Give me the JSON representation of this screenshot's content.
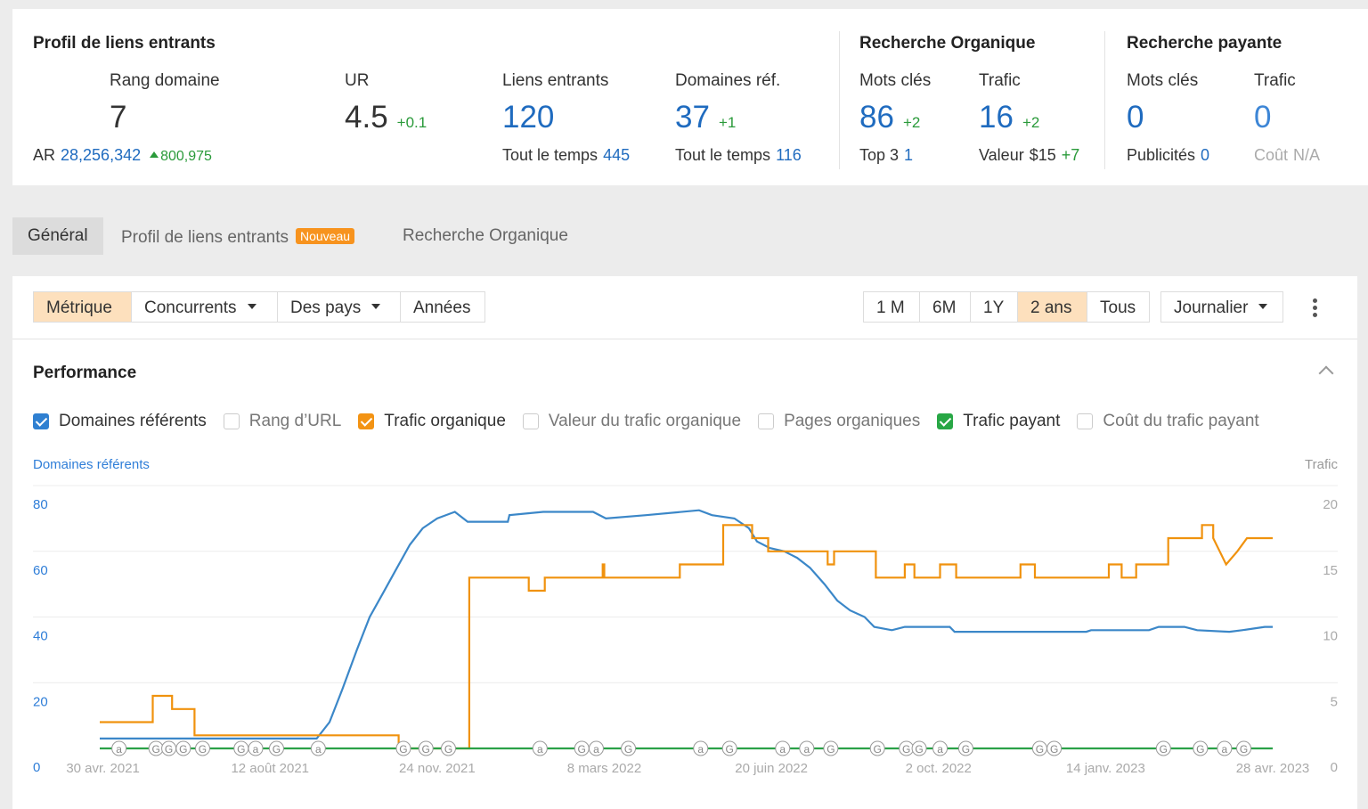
{
  "backlinks": {
    "title": "Profil de liens entrants",
    "domain_rating": {
      "label": "Rang domaine",
      "value": 7,
      "ar_label": "AR",
      "ar": "28,256,342",
      "ar_change": "800,975"
    },
    "url_rating": {
      "label": "UR",
      "value": 4.5,
      "change": "+0.1"
    },
    "backlinks": {
      "label": "Liens entrants",
      "value": 120,
      "sub_label": "Tout le temps",
      "sub": 445
    },
    "ref_domains": {
      "label": "Domaines réf.",
      "value": 37,
      "change": "+1",
      "sub_label": "Tout le temps",
      "sub": 116
    }
  },
  "organic": {
    "title": "Recherche Organique",
    "keywords": {
      "label": "Mots clés",
      "value": 86,
      "change": "+2",
      "sub_label": "Top 3",
      "sub": 1
    },
    "traffic": {
      "label": "Trafic",
      "value": 16,
      "change": "+2",
      "sub_label": "Valeur",
      "sub": "$15",
      "sub_change": "+7"
    }
  },
  "paid": {
    "title": "Recherche payante",
    "keywords": {
      "label": "Mots clés",
      "value": 0,
      "sub_label": "Publicités",
      "sub": 0
    },
    "traffic": {
      "label": "Trafic",
      "value": 0,
      "sub_label": "Coût",
      "sub": "N/A"
    }
  },
  "tabs": [
    "Général",
    "Profil de liens entrants",
    "Recherche Organique"
  ],
  "badge": "Nouveau",
  "filters": [
    "Métrique",
    "Concurrents",
    "Des pays",
    "Années"
  ],
  "ranges": [
    "1 M",
    "6M",
    "1Y",
    "2 ans",
    "Tous"
  ],
  "interval": "Journalier",
  "performance": {
    "title": "Performance",
    "checkboxes": [
      {
        "label": "Domaines référents",
        "checked": true,
        "color": "#2f80d1"
      },
      {
        "label": "Rang d’URL",
        "checked": false
      },
      {
        "label": "Trafic organique",
        "checked": true,
        "color": "#f39313"
      },
      {
        "label": "Valeur du trafic organique",
        "checked": false
      },
      {
        "label": "Pages organiques",
        "checked": false
      },
      {
        "label": "Trafic payant",
        "checked": true,
        "color": "#28a745"
      },
      {
        "label": "Coût du trafic payant",
        "checked": false
      }
    ]
  },
  "chart_data": {
    "type": "line",
    "y_label": "Domaines référents",
    "y2_label": "Trafic",
    "xlim": [
      "2021-04-28",
      "2023-04-28"
    ],
    "xticks": [
      {
        "value": "2021-04-30",
        "label": "30 avr. 2021"
      },
      {
        "value": "2021-08-12",
        "label": "12 août 2021"
      },
      {
        "value": "2021-11-24",
        "label": "24 nov. 2021"
      },
      {
        "value": "2022-03-08",
        "label": "8 mars 2022"
      },
      {
        "value": "2022-06-20",
        "label": "20 juin 2022"
      },
      {
        "value": "2022-10-02",
        "label": "2 oct. 2022"
      },
      {
        "value": "2023-01-14",
        "label": "14 janv. 2023"
      },
      {
        "value": "2023-04-28",
        "label": "28 avr. 2023"
      }
    ],
    "ylim": [
      0,
      80
    ],
    "yticks": [
      0,
      20,
      40,
      60,
      80
    ],
    "y2lim": [
      0,
      20
    ],
    "y2ticks": [
      0,
      5,
      10,
      15,
      20
    ],
    "grid": true,
    "series": [
      {
        "name": "Domaines référents",
        "color": "#3b87c8",
        "axis": "y",
        "x": [
          "2021-04-28",
          "2021-09-10",
          "2021-09-18",
          "2021-09-26",
          "2021-10-05",
          "2021-10-13",
          "2021-10-21",
          "2021-10-30",
          "2021-11-07",
          "2021-11-15",
          "2021-11-24",
          "2021-12-05",
          "2021-12-13",
          "2022-01-07",
          "2022-01-08",
          "2022-01-29",
          "2022-03-01",
          "2022-03-09",
          "2022-04-03",
          "2022-05-06",
          "2022-05-14",
          "2022-05-28",
          "2022-06-06",
          "2022-06-11",
          "2022-06-19",
          "2022-06-28",
          "2022-07-06",
          "2022-07-14",
          "2022-07-23",
          "2022-07-31",
          "2022-08-08",
          "2022-08-17",
          "2022-08-23",
          "2022-09-03",
          "2022-09-11",
          "2022-10-09",
          "2022-10-12",
          "2023-01-02",
          "2023-01-05",
          "2023-02-10",
          "2023-02-16",
          "2023-03-04",
          "2023-03-12",
          "2023-04-01",
          "2023-04-09",
          "2023-04-23",
          "2023-04-28"
        ],
        "values": [
          3,
          3,
          8,
          18,
          30,
          40,
          47,
          55,
          62,
          67,
          70,
          72,
          69,
          69,
          71,
          72,
          72,
          70,
          71,
          72.5,
          71,
          70,
          67,
          63,
          61,
          60,
          58,
          55,
          50,
          45,
          42,
          40,
          37,
          36,
          37,
          37,
          35.5,
          35.5,
          36,
          36,
          37,
          37,
          36,
          35.5,
          36,
          37,
          37
        ]
      },
      {
        "name": "Trafic organique",
        "color": "#f0920e",
        "axis": "y2",
        "x": [
          "2021-04-28",
          "2021-05-31",
          "2021-05-31",
          "2021-06-12",
          "2021-06-12",
          "2021-06-26",
          "2021-06-26",
          "2021-10-31",
          "2021-10-31",
          "2021-12-14",
          "2021-12-14",
          "2022-01-20",
          "2022-01-20",
          "2022-01-30",
          "2022-01-30",
          "2022-03-07",
          "2022-03-07",
          "2022-03-08",
          "2022-03-08",
          "2022-04-24",
          "2022-04-24",
          "2022-05-21",
          "2022-05-21",
          "2022-06-08",
          "2022-06-08",
          "2022-06-18",
          "2022-06-18",
          "2022-07-25",
          "2022-07-25",
          "2022-07-29",
          "2022-07-29",
          "2022-08-24",
          "2022-08-24",
          "2022-09-11",
          "2022-09-11",
          "2022-09-17",
          "2022-09-17",
          "2022-10-03",
          "2022-10-03",
          "2022-10-13",
          "2022-10-13",
          "2022-11-22",
          "2022-11-22",
          "2022-12-01",
          "2022-12-01",
          "2023-01-16",
          "2023-01-16",
          "2023-01-24",
          "2023-01-24",
          "2023-02-02",
          "2023-02-02",
          "2023-02-22",
          "2023-02-22",
          "2023-03-15",
          "2023-03-15",
          "2023-03-22",
          "2023-03-22",
          "2023-03-26",
          "2023-03-30",
          "2023-04-06",
          "2023-04-12",
          "2023-04-28"
        ],
        "values": [
          2,
          2,
          4,
          4,
          3,
          3,
          1,
          1,
          0,
          0,
          13,
          13,
          12,
          12,
          13,
          13,
          14,
          14,
          13,
          13,
          14,
          14,
          17,
          17,
          16,
          16,
          15,
          15,
          14,
          14,
          15,
          15,
          13,
          13,
          14,
          14,
          13,
          13,
          14,
          14,
          13,
          13,
          14,
          14,
          13,
          13,
          14,
          14,
          13,
          13,
          14,
          14,
          16,
          16,
          17,
          17,
          16,
          15,
          14,
          15,
          16,
          16
        ]
      },
      {
        "name": "Trafic payant",
        "color": "#2aa147",
        "axis": "y2",
        "x": [
          "2021-04-28",
          "2023-04-28"
        ],
        "values": [
          0,
          0
        ]
      }
    ],
    "annotations": [
      {
        "x": "2021-05-10",
        "label": "a"
      },
      {
        "x": "2021-06-02",
        "label": "G"
      },
      {
        "x": "2021-06-10",
        "label": "G"
      },
      {
        "x": "2021-06-19",
        "label": "G"
      },
      {
        "x": "2021-07-01",
        "label": "G"
      },
      {
        "x": "2021-07-25",
        "label": "G"
      },
      {
        "x": "2021-08-03",
        "label": "a"
      },
      {
        "x": "2021-08-16",
        "label": "G"
      },
      {
        "x": "2021-09-11",
        "label": "a"
      },
      {
        "x": "2021-11-03",
        "label": "G"
      },
      {
        "x": "2021-11-17",
        "label": "G"
      },
      {
        "x": "2021-12-01",
        "label": "G"
      },
      {
        "x": "2022-01-27",
        "label": "a"
      },
      {
        "x": "2022-02-22",
        "label": "G"
      },
      {
        "x": "2022-03-03",
        "label": "a"
      },
      {
        "x": "2022-03-23",
        "label": "G"
      },
      {
        "x": "2022-05-07",
        "label": "a"
      },
      {
        "x": "2022-05-25",
        "label": "G"
      },
      {
        "x": "2022-06-27",
        "label": "a"
      },
      {
        "x": "2022-07-12",
        "label": "a"
      },
      {
        "x": "2022-07-27",
        "label": "G"
      },
      {
        "x": "2022-08-25",
        "label": "G"
      },
      {
        "x": "2022-09-12",
        "label": "G"
      },
      {
        "x": "2022-09-20",
        "label": "G"
      },
      {
        "x": "2022-10-03",
        "label": "a"
      },
      {
        "x": "2022-10-19",
        "label": "G"
      },
      {
        "x": "2022-12-04",
        "label": "G"
      },
      {
        "x": "2022-12-13",
        "label": "G"
      },
      {
        "x": "2023-02-19",
        "label": "G"
      },
      {
        "x": "2023-03-14",
        "label": "G"
      },
      {
        "x": "2023-03-29",
        "label": "a"
      },
      {
        "x": "2023-04-10",
        "label": "G"
      }
    ]
  }
}
